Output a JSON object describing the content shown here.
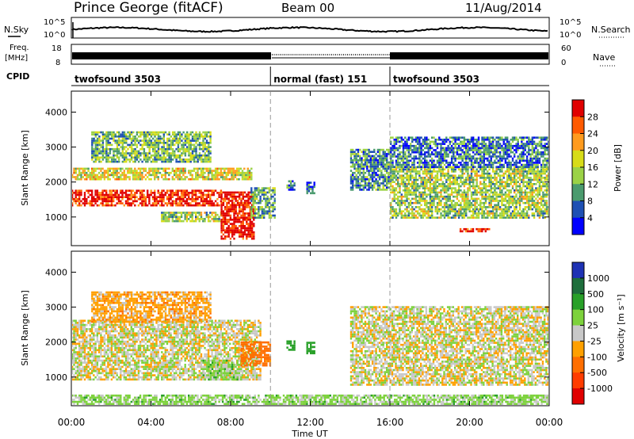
{
  "header": {
    "station": "Prince George (fitACF)",
    "beam": "Beam 00",
    "date": "11/Aug/2014"
  },
  "summary": {
    "nsky_label": "N.Sky",
    "nsearch_label": "N.Search",
    "freq_label_1": "Freq.",
    "freq_label_2": "[MHz]",
    "nave_label": "Nave",
    "cpid_label": "CPID",
    "noise_ticks": [
      "10^5",
      "10^0"
    ],
    "freq_ticks": [
      "18",
      "8"
    ],
    "nave_ticks": [
      "60",
      "0"
    ]
  },
  "cpid_segments": [
    {
      "label": "twofsound 3503",
      "start": 0,
      "end": 10
    },
    {
      "label": "normal (fast) 151",
      "start": 10,
      "end": 16
    },
    {
      "label": "twofsound 3503",
      "start": 16,
      "end": 24
    }
  ],
  "power_colorbar": {
    "label": "Power [dB]",
    "ticks": [
      "28",
      "24",
      "20",
      "16",
      "12",
      "8",
      "4"
    ],
    "colors": [
      "#e00000",
      "#ff5a00",
      "#ff9b1e",
      "#d7dc18",
      "#9bd246",
      "#4b9b6e",
      "#1e50b4",
      "#0000ff"
    ]
  },
  "velocity_colorbar": {
    "label": "Velocity [m s⁻¹]",
    "ticks": [
      "1000",
      "500",
      "100",
      "25",
      "-25",
      "-100",
      "-500",
      "-1000"
    ],
    "colors": [
      "#1e32b4",
      "#1e6e3c",
      "#28a028",
      "#7dd23c",
      "#c8c8c8",
      "#ffa000",
      "#ff6e00",
      "#ff3c00",
      "#e00000"
    ]
  },
  "chart_data": [
    {
      "type": "heatmap",
      "name": "power",
      "ylabel": "Slant Range [km]",
      "xlabel": "Time UT",
      "xlim": [
        0,
        24
      ],
      "ylim": [
        180,
        4600
      ],
      "yticks": [
        1000,
        2000,
        3000,
        4000
      ],
      "xticks": [
        "00:00",
        "04:00",
        "08:00",
        "12:00",
        "16:00",
        "20:00",
        "00:00"
      ],
      "echo_regions": [
        {
          "t": [
            0.0,
            7.5
          ],
          "r": [
            1300,
            1750
          ],
          "level": 0.9
        },
        {
          "t": [
            0.0,
            9.0
          ],
          "r": [
            2050,
            2400
          ],
          "level": 0.55
        },
        {
          "t": [
            1.0,
            7.0
          ],
          "r": [
            2550,
            3450
          ],
          "level": 0.4
        },
        {
          "t": [
            4.5,
            7.5
          ],
          "r": [
            850,
            1150
          ],
          "level": 0.45
        },
        {
          "t": [
            7.5,
            9.2
          ],
          "r": [
            350,
            1700
          ],
          "level": 0.95
        },
        {
          "t": [
            9.0,
            10.2
          ],
          "r": [
            950,
            1800
          ],
          "level": 0.35
        },
        {
          "t": [
            10.8,
            11.2
          ],
          "r": [
            1750,
            2050
          ],
          "level": 0.2
        },
        {
          "t": [
            11.8,
            12.2
          ],
          "r": [
            1650,
            2000
          ],
          "level": 0.2
        },
        {
          "t": [
            14.0,
            16.0
          ],
          "r": [
            1750,
            2900
          ],
          "level": 0.3
        },
        {
          "t": [
            16.0,
            24.0
          ],
          "r": [
            950,
            2450
          ],
          "level": 0.45
        },
        {
          "t": [
            16.0,
            24.0
          ],
          "r": [
            2400,
            3300
          ],
          "level": 0.25
        },
        {
          "t": [
            19.5,
            21.0
          ],
          "r": [
            560,
            680
          ],
          "level": 0.95
        }
      ]
    },
    {
      "type": "heatmap",
      "name": "velocity",
      "ylabel": "Slant Range [km]",
      "xlabel": "Time UT",
      "xlim": [
        0,
        24
      ],
      "ylim": [
        180,
        4600
      ],
      "yticks": [
        1000,
        2000,
        3000,
        4000
      ],
      "xticks": [
        "00:00",
        "04:00",
        "08:00",
        "12:00",
        "16:00",
        "20:00",
        "00:00"
      ],
      "echo_regions": [
        {
          "t": [
            0.0,
            9.5
          ],
          "r": [
            900,
            2600
          ],
          "v": 0
        },
        {
          "t": [
            1.0,
            7.0
          ],
          "r": [
            2550,
            3450
          ],
          "v": -60
        },
        {
          "t": [
            6.5,
            8.5
          ],
          "r": [
            900,
            1500
          ],
          "v": 60
        },
        {
          "t": [
            8.5,
            10.0
          ],
          "r": [
            1300,
            2000
          ],
          "v": -150
        },
        {
          "t": [
            10.8,
            11.2
          ],
          "r": [
            1750,
            2050
          ],
          "v": 300
        },
        {
          "t": [
            11.8,
            12.2
          ],
          "r": [
            1650,
            2000
          ],
          "v": 300
        },
        {
          "t": [
            14.0,
            24.0
          ],
          "r": [
            750,
            3000
          ],
          "v": 0
        },
        {
          "t": [
            0.0,
            24.0
          ],
          "r": [
            200,
            450
          ],
          "v": 50
        }
      ]
    }
  ]
}
